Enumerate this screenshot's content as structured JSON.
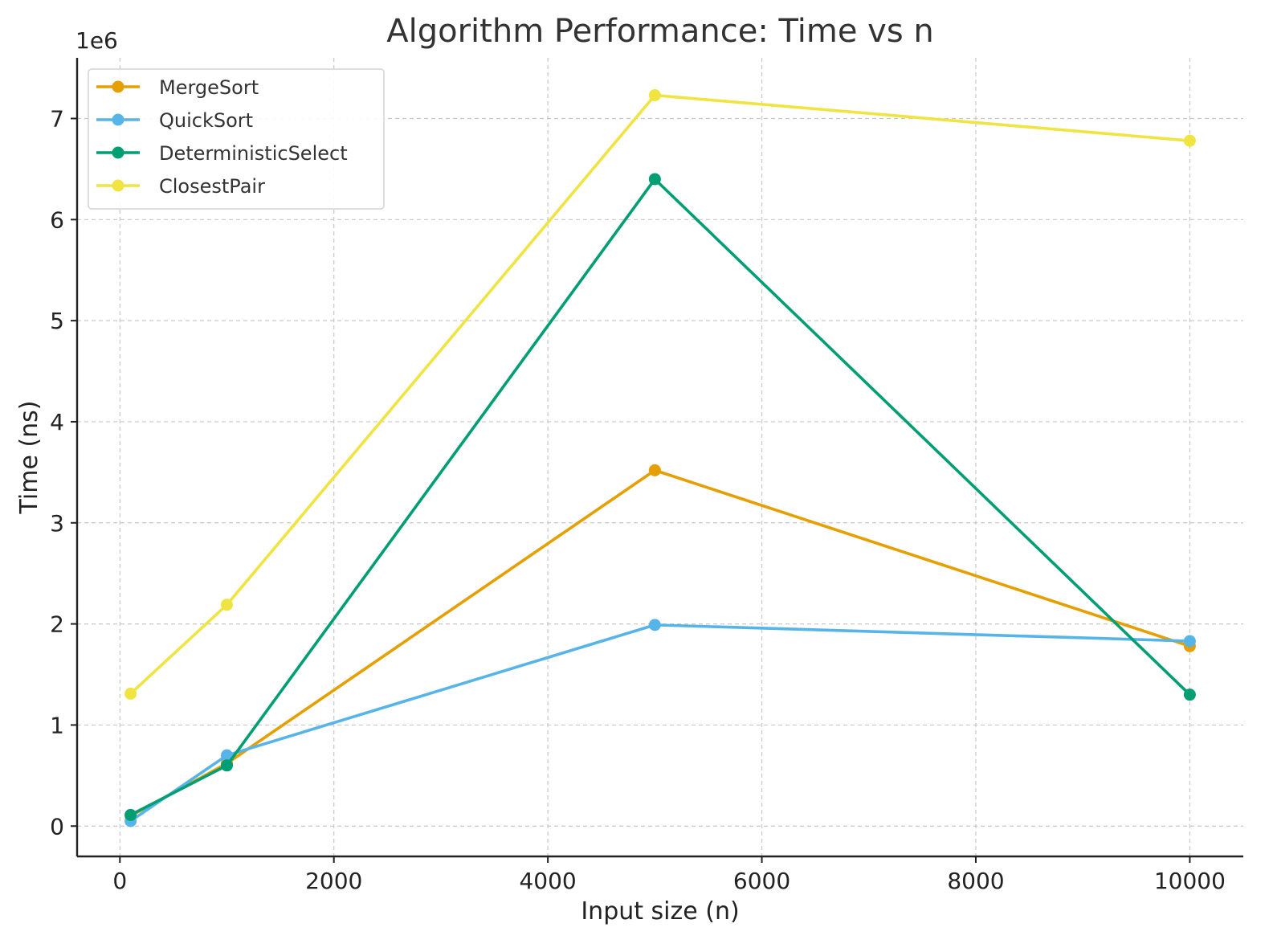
{
  "chart_data": {
    "type": "line",
    "title": "Algorithm Performance: Time vs n",
    "xlabel": "Input size (n)",
    "ylabel": "Time (ns)",
    "y_offset_label": "1e6",
    "x": [
      100,
      1000,
      5000,
      10000
    ],
    "xlim": [
      -400,
      10500
    ],
    "ylim": [
      -0.3,
      7.6
    ],
    "xticks": [
      0,
      2000,
      4000,
      6000,
      8000,
      10000
    ],
    "yticks": [
      0,
      1,
      2,
      3,
      4,
      5,
      6,
      7
    ],
    "grid": true,
    "legend_position": "top-left",
    "series": [
      {
        "name": "MergeSort",
        "color": "#E69F00",
        "values": [
          0.1,
          0.62,
          3.52,
          1.78
        ]
      },
      {
        "name": "QuickSort",
        "color": "#56B4E9",
        "values": [
          0.05,
          0.7,
          1.99,
          1.83
        ]
      },
      {
        "name": "DeterministicSelect",
        "color": "#009E73",
        "values": [
          0.11,
          0.6,
          6.4,
          1.3
        ]
      },
      {
        "name": "ClosestPair",
        "color": "#F0E442",
        "values": [
          1.31,
          2.19,
          7.23,
          6.78
        ]
      }
    ]
  }
}
